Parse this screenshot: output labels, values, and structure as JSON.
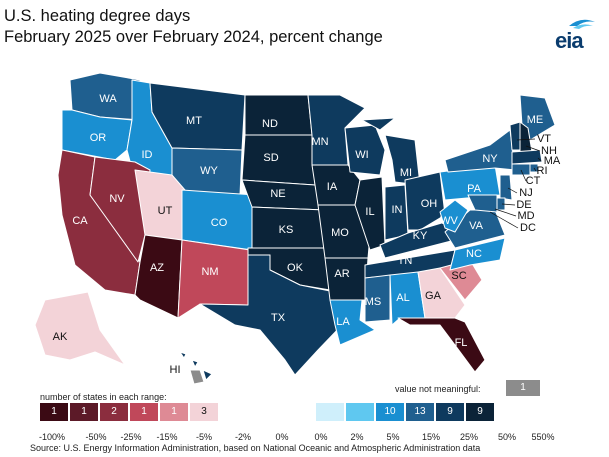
{
  "title_line1": "U.S. heating degree days",
  "title_line2": "February 2025 over February 2024, percent change",
  "logo_text": "eia",
  "legend_header": "number of states in each range:",
  "not_meaningful_label": "value not meaningful:",
  "not_meaningful_count": "1",
  "source": "Source: U.S. Energy Information Administration, based on National Oceanic and Atmospheric Administration data",
  "colors": {
    "neg_100_50": "#3b0a14",
    "neg_50_25": "#5c1a28",
    "neg_25_15": "#8b2d3e",
    "neg_15_5": "#c0485a",
    "neg_5_2": "#de8a95",
    "neg_2_0": "#f3d3d8",
    "pos_0_2": "#cfeffb",
    "pos_2_5": "#5fc8f0",
    "pos_5_15": "#1a8fd1",
    "pos_15_25": "#1f5f8f",
    "pos_25_50": "#0e3a5e",
    "pos_50_550": "#0b2338",
    "not_meaningful": "#8c8c8c"
  },
  "legend_cells": [
    {
      "label": "1",
      "color": "#3b0a14"
    },
    {
      "label": "1",
      "color": "#5c1a28"
    },
    {
      "label": "2",
      "color": "#8b2d3e"
    },
    {
      "label": "1",
      "color": "#c0485a"
    },
    {
      "label": "1",
      "color": "#de8a95"
    },
    {
      "label": "3",
      "color": "#f3d3d8"
    },
    {
      "label": "",
      "color": "#cfeffb"
    },
    {
      "label": "",
      "color": "#5fc8f0"
    },
    {
      "label": "10",
      "color": "#1a8fd1"
    },
    {
      "label": "13",
      "color": "#1f5f8f"
    },
    {
      "label": "9",
      "color": "#0e3a5e"
    },
    {
      "label": "9",
      "color": "#0b2338"
    }
  ],
  "ticks": [
    "-100%",
    "-50%",
    "-25%",
    "-15%",
    "-5%",
    "-2%",
    "0%",
    "0%",
    "2%",
    "5%",
    "15%",
    "25%",
    "50%",
    "550%"
  ],
  "states": {
    "WA": "WA",
    "OR": "OR",
    "ID": "ID",
    "MT": "MT",
    "WY": "WY",
    "CA": "CA",
    "NV": "NV",
    "UT": "UT",
    "CO": "CO",
    "AZ": "AZ",
    "NM": "NM",
    "ND": "ND",
    "SD": "SD",
    "NE": "NE",
    "KS": "KS",
    "OK": "OK",
    "TX": "TX",
    "MN": "MN",
    "IA": "IA",
    "MO": "MO",
    "AR": "AR",
    "LA": "LA",
    "WI": "WI",
    "IL": "IL",
    "MI": "MI",
    "IN": "IN",
    "OH": "OH",
    "KY": "KY",
    "TN": "TN",
    "MS": "MS",
    "AL": "AL",
    "GA": "GA",
    "FL": "FL",
    "SC": "SC",
    "NC": "NC",
    "VA": "VA",
    "WV": "WV",
    "PA": "PA",
    "NY": "NY",
    "ME": "ME",
    "VT": "VT",
    "NH": "NH",
    "MA": "MA",
    "RI": "RI",
    "CT": "CT",
    "NJ": "NJ",
    "DE": "DE",
    "MD": "MD",
    "DC": "DC",
    "AK": "AK",
    "HI": "HI"
  }
}
